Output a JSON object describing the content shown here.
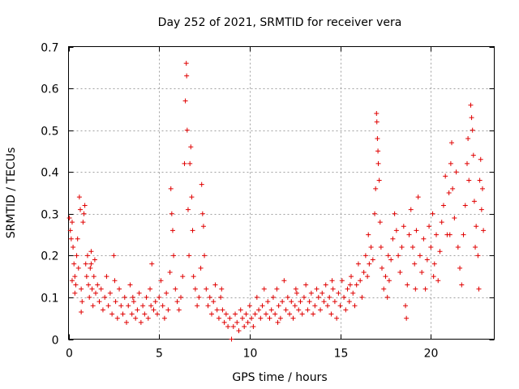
{
  "chart_data": {
    "type": "scatter",
    "title": "Day 252 of 2021, SRMTID for receiver vera",
    "xlabel": "GPS time / hours",
    "ylabel": "SRMTID / TECUs",
    "xlim": [
      0,
      23.5
    ],
    "ylim": [
      0,
      0.7
    ],
    "x_ticks": [
      0,
      5,
      10,
      15,
      20
    ],
    "x_tick_labels": [
      "0",
      "5",
      "10",
      "15",
      "20"
    ],
    "y_ticks": [
      0,
      0.1,
      0.2,
      0.3,
      0.4,
      0.5,
      0.6,
      0.7
    ],
    "y_tick_labels": [
      "0",
      "0.1",
      "0.2",
      "0.3",
      "0.4",
      "0.5",
      "0.6",
      "0.7"
    ],
    "grid": true,
    "marker": "plus",
    "color": "#e00000",
    "series": [
      {
        "name": "SRMTID",
        "points": [
          [
            0.05,
            0.29
          ],
          [
            0.1,
            0.26
          ],
          [
            0.15,
            0.24
          ],
          [
            0.2,
            0.28
          ],
          [
            0.25,
            0.22
          ],
          [
            0.3,
            0.18
          ],
          [
            0.35,
            0.15
          ],
          [
            0.4,
            0.13
          ],
          [
            0.45,
            0.2
          ],
          [
            0.5,
            0.24
          ],
          [
            0.55,
            0.17
          ],
          [
            0.6,
            0.34
          ],
          [
            0.65,
            0.31
          ],
          [
            0.7,
            0.12
          ],
          [
            0.75,
            0.09
          ],
          [
            0.8,
            0.28
          ],
          [
            0.85,
            0.3
          ],
          [
            0.9,
            0.32
          ],
          [
            0.95,
            0.18
          ],
          [
            1.0,
            0.15
          ],
          [
            1.05,
            0.2
          ],
          [
            1.1,
            0.13
          ],
          [
            1.15,
            0.1
          ],
          [
            1.2,
            0.17
          ],
          [
            1.25,
            0.21
          ],
          [
            1.3,
            0.12
          ],
          [
            1.35,
            0.08
          ],
          [
            1.4,
            0.15
          ],
          [
            1.45,
            0.19
          ],
          [
            1.5,
            0.11
          ],
          [
            0.7,
            0.065
          ],
          [
            0.2,
            0.14
          ],
          [
            0.35,
            0.11
          ],
          [
            1.6,
            0.13
          ],
          [
            1.7,
            0.09
          ],
          [
            1.8,
            0.12
          ],
          [
            1.9,
            0.07
          ],
          [
            2.0,
            0.1
          ],
          [
            2.1,
            0.15
          ],
          [
            2.2,
            0.08
          ],
          [
            2.3,
            0.11
          ],
          [
            2.4,
            0.06
          ],
          [
            2.5,
            0.2
          ],
          [
            2.55,
            0.14
          ],
          [
            2.6,
            0.09
          ],
          [
            2.7,
            0.05
          ],
          [
            2.8,
            0.12
          ],
          [
            2.9,
            0.08
          ],
          [
            3.0,
            0.06
          ],
          [
            3.1,
            0.1
          ],
          [
            3.2,
            0.04
          ],
          [
            3.3,
            0.08
          ],
          [
            3.4,
            0.13
          ],
          [
            3.5,
            0.06
          ],
          [
            3.6,
            0.09
          ],
          [
            3.7,
            0.05
          ],
          [
            3.8,
            0.07
          ],
          [
            3.9,
            0.11
          ],
          [
            4.0,
            0.04
          ],
          [
            4.1,
            0.08
          ],
          [
            4.2,
            0.06
          ],
          [
            4.3,
            0.1
          ],
          [
            4.4,
            0.05
          ],
          [
            4.5,
            0.12
          ],
          [
            4.6,
            0.18
          ],
          [
            4.7,
            0.07
          ],
          [
            4.8,
            0.09
          ],
          [
            4.9,
            0.06
          ],
          [
            5.0,
            0.1
          ],
          [
            5.1,
            0.14
          ],
          [
            5.2,
            0.08
          ],
          [
            5.3,
            0.05
          ],
          [
            5.4,
            0.11
          ],
          [
            5.5,
            0.07
          ],
          [
            5.6,
            0.16
          ],
          [
            5.65,
            0.36
          ],
          [
            5.7,
            0.3
          ],
          [
            5.75,
            0.26
          ],
          [
            5.8,
            0.2
          ],
          [
            5.9,
            0.12
          ],
          [
            6.0,
            0.09
          ],
          [
            6.1,
            0.07
          ],
          [
            6.2,
            0.1
          ],
          [
            6.3,
            0.15
          ],
          [
            6.4,
            0.42
          ],
          [
            6.45,
            0.57
          ],
          [
            6.5,
            0.66
          ],
          [
            6.52,
            0.63
          ],
          [
            6.55,
            0.5
          ],
          [
            6.6,
            0.31
          ],
          [
            6.65,
            0.2
          ],
          [
            6.7,
            0.42
          ],
          [
            6.75,
            0.46
          ],
          [
            6.8,
            0.34
          ],
          [
            6.85,
            0.26
          ],
          [
            6.9,
            0.15
          ],
          [
            7.0,
            0.12
          ],
          [
            7.1,
            0.08
          ],
          [
            7.2,
            0.1
          ],
          [
            7.3,
            0.17
          ],
          [
            7.35,
            0.37
          ],
          [
            7.4,
            0.3
          ],
          [
            7.45,
            0.27
          ],
          [
            7.5,
            0.2
          ],
          [
            7.6,
            0.12
          ],
          [
            7.7,
            0.08
          ],
          [
            7.8,
            0.1
          ],
          [
            7.9,
            0.06
          ],
          [
            8.0,
            0.09
          ],
          [
            8.1,
            0.13
          ],
          [
            8.2,
            0.07
          ],
          [
            8.3,
            0.05
          ],
          [
            8.4,
            0.1
          ],
          [
            8.5,
            0.07
          ],
          [
            8.6,
            0.04
          ],
          [
            8.7,
            0.06
          ],
          [
            8.8,
            0.03
          ],
          [
            8.9,
            0.05
          ],
          [
            9.0,
            0.0
          ],
          [
            9.1,
            0.03
          ],
          [
            9.2,
            0.06
          ],
          [
            9.3,
            0.04
          ],
          [
            9.4,
            0.02
          ],
          [
            9.5,
            0.07
          ],
          [
            9.6,
            0.05
          ],
          [
            9.7,
            0.03
          ],
          [
            9.8,
            0.06
          ],
          [
            9.9,
            0.04
          ],
          [
            10.0,
            0.08
          ],
          [
            10.1,
            0.05
          ],
          [
            10.2,
            0.03
          ],
          [
            10.3,
            0.06
          ],
          [
            10.4,
            0.1
          ],
          [
            10.5,
            0.07
          ],
          [
            10.6,
            0.05
          ],
          [
            10.7,
            0.08
          ],
          [
            10.8,
            0.12
          ],
          [
            10.9,
            0.06
          ],
          [
            11.0,
            0.09
          ],
          [
            11.1,
            0.05
          ],
          [
            11.2,
            0.07
          ],
          [
            11.3,
            0.1
          ],
          [
            11.4,
            0.06
          ],
          [
            11.5,
            0.12
          ],
          [
            11.6,
            0.08
          ],
          [
            11.7,
            0.05
          ],
          [
            11.8,
            0.09
          ],
          [
            11.9,
            0.14
          ],
          [
            12.0,
            0.07
          ],
          [
            12.1,
            0.1
          ],
          [
            12.2,
            0.06
          ],
          [
            12.3,
            0.09
          ],
          [
            12.4,
            0.05
          ],
          [
            12.5,
            0.08
          ],
          [
            12.6,
            0.11
          ],
          [
            12.7,
            0.07
          ],
          [
            12.8,
            0.09
          ],
          [
            12.9,
            0.06
          ],
          [
            13.0,
            0.1
          ],
          [
            13.1,
            0.13
          ],
          [
            13.2,
            0.07
          ],
          [
            13.3,
            0.09
          ],
          [
            13.4,
            0.11
          ],
          [
            13.5,
            0.06
          ],
          [
            13.6,
            0.08
          ],
          [
            13.7,
            0.12
          ],
          [
            13.8,
            0.1
          ],
          [
            13.9,
            0.07
          ],
          [
            14.0,
            0.11
          ],
          [
            14.1,
            0.09
          ],
          [
            14.2,
            0.13
          ],
          [
            14.3,
            0.08
          ],
          [
            14.4,
            0.1
          ],
          [
            14.5,
            0.06
          ],
          [
            14.6,
            0.12
          ],
          [
            14.7,
            0.09
          ],
          [
            14.8,
            0.05
          ],
          [
            14.9,
            0.11
          ],
          [
            15.0,
            0.08
          ],
          [
            15.1,
            0.14
          ],
          [
            15.2,
            0.1
          ],
          [
            15.3,
            0.07
          ],
          [
            15.4,
            0.12
          ],
          [
            15.5,
            0.09
          ],
          [
            15.6,
            0.15
          ],
          [
            15.7,
            0.11
          ],
          [
            15.8,
            0.08
          ],
          [
            15.9,
            0.13
          ],
          [
            16.0,
            0.18
          ],
          [
            16.1,
            0.14
          ],
          [
            16.2,
            0.1
          ],
          [
            16.3,
            0.16
          ],
          [
            16.4,
            0.2
          ],
          [
            16.5,
            0.15
          ],
          [
            16.6,
            0.18
          ],
          [
            16.7,
            0.22
          ],
          [
            16.8,
            0.19
          ],
          [
            16.9,
            0.3
          ],
          [
            16.95,
            0.36
          ],
          [
            17.0,
            0.54
          ],
          [
            17.02,
            0.52
          ],
          [
            17.05,
            0.48
          ],
          [
            17.08,
            0.45
          ],
          [
            17.1,
            0.42
          ],
          [
            17.15,
            0.38
          ],
          [
            17.2,
            0.28
          ],
          [
            17.25,
            0.22
          ],
          [
            17.3,
            0.17
          ],
          [
            17.4,
            0.12
          ],
          [
            17.5,
            0.15
          ],
          [
            17.6,
            0.1
          ],
          [
            17.7,
            0.14
          ],
          [
            17.8,
            0.19
          ],
          [
            17.9,
            0.24
          ],
          [
            18.0,
            0.3
          ],
          [
            18.1,
            0.26
          ],
          [
            18.2,
            0.2
          ],
          [
            18.3,
            0.16
          ],
          [
            18.4,
            0.22
          ],
          [
            18.5,
            0.27
          ],
          [
            18.6,
            0.08
          ],
          [
            18.65,
            0.05
          ],
          [
            18.7,
            0.13
          ],
          [
            18.8,
            0.25
          ],
          [
            18.9,
            0.31
          ],
          [
            19.0,
            0.22
          ],
          [
            19.1,
            0.18
          ],
          [
            19.2,
            0.26
          ],
          [
            19.3,
            0.34
          ],
          [
            19.4,
            0.2
          ],
          [
            19.5,
            0.16
          ],
          [
            19.6,
            0.24
          ],
          [
            19.7,
            0.12
          ],
          [
            19.8,
            0.19
          ],
          [
            19.9,
            0.27
          ],
          [
            20.0,
            0.22
          ],
          [
            20.1,
            0.3
          ],
          [
            20.2,
            0.18
          ],
          [
            20.3,
            0.25
          ],
          [
            20.4,
            0.14
          ],
          [
            20.5,
            0.21
          ],
          [
            20.6,
            0.28
          ],
          [
            20.7,
            0.32
          ],
          [
            20.8,
            0.39
          ],
          [
            20.9,
            0.25
          ],
          [
            21.0,
            0.35
          ],
          [
            21.1,
            0.42
          ],
          [
            21.15,
            0.47
          ],
          [
            21.2,
            0.36
          ],
          [
            21.3,
            0.29
          ],
          [
            21.4,
            0.4
          ],
          [
            21.5,
            0.22
          ],
          [
            21.6,
            0.17
          ],
          [
            21.7,
            0.13
          ],
          [
            21.8,
            0.25
          ],
          [
            21.9,
            0.32
          ],
          [
            22.0,
            0.42
          ],
          [
            22.05,
            0.48
          ],
          [
            22.1,
            0.38
          ],
          [
            22.2,
            0.56
          ],
          [
            22.25,
            0.53
          ],
          [
            22.3,
            0.5
          ],
          [
            22.35,
            0.44
          ],
          [
            22.4,
            0.33
          ],
          [
            22.5,
            0.27
          ],
          [
            22.6,
            0.2
          ],
          [
            22.65,
            0.12
          ],
          [
            22.7,
            0.38
          ],
          [
            22.75,
            0.43
          ],
          [
            22.8,
            0.31
          ],
          [
            22.85,
            0.36
          ],
          [
            22.9,
            0.26
          ],
          [
            1.25,
            0.18
          ],
          [
            3.55,
            0.1
          ],
          [
            4.55,
            0.08
          ],
          [
            8.45,
            0.12
          ],
          [
            11.55,
            0.04
          ],
          [
            12.55,
            0.12
          ],
          [
            14.55,
            0.14
          ],
          [
            15.55,
            0.13
          ],
          [
            16.55,
            0.25
          ],
          [
            17.65,
            0.2
          ],
          [
            19.15,
            0.12
          ],
          [
            20.15,
            0.15
          ],
          [
            21.05,
            0.25
          ],
          [
            22.45,
            0.22
          ]
        ]
      }
    ]
  }
}
